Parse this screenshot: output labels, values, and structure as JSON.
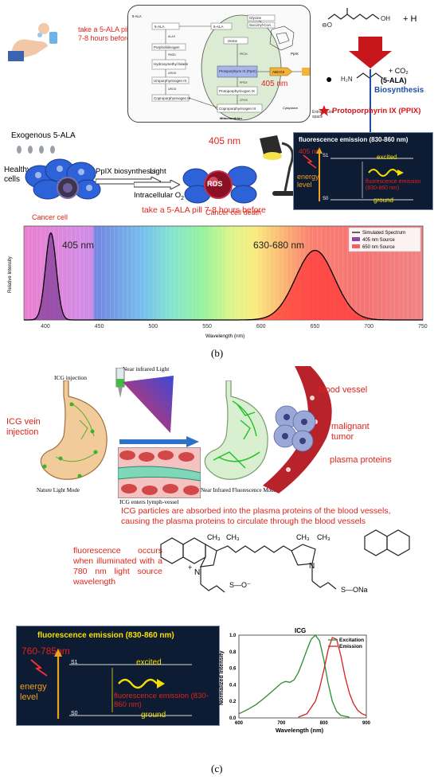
{
  "panel_b": {
    "pill_text": "take a 5-ALA pill 7-8 hours before",
    "pathway": {
      "nodes": [
        "5-ALA",
        "5-ALA",
        "Porphobilinogen",
        "Hydroxymethyl bilane",
        "Uroporphyrinogen III",
        "Coproporphyrinogen III",
        "Protoporphyrin IX (PpIX)",
        "Heme",
        "Glycine",
        "Succinyl-CoA",
        "Protoporphyrinogen IX",
        "Coproporphyrinogen III",
        "ABCG2",
        "ABCG2",
        "PpIX"
      ],
      "enzymes": [
        "ALAS",
        "PBGD",
        "UROS",
        "UROD",
        "CPOX",
        "PPOX",
        "FECH"
      ],
      "regions": [
        "Mitochondrion",
        "Cytoplasm",
        "Extracellular space"
      ],
      "wavelength": "405 nm"
    },
    "reaction": {
      "plus": "+ H",
      "products": "+ CO₂",
      "label": "(5-ALA)",
      "biosynthesis": "Biosynthesis",
      "product_name": "Protoporphyrin IX (PPIX)"
    },
    "middle": {
      "exogenous": "Exogenous 5-ALA",
      "healthy": "Healthy cells",
      "cancer_cell": "Cancer cell",
      "ppix_biosynthesis": "PpIX biosynthesis",
      "light": "Light",
      "intracellular": "Intracellular O",
      "o2_sub": "2",
      "ros": "ROS",
      "cancer_death": "Cancer cell death",
      "lamp_label": "405 nm",
      "pill_again": "take a 5-ALA pill 7-8 hours before"
    },
    "energy": {
      "title": "fluorescence emission (830-860 nm)",
      "excite": "405 nm",
      "s1": "S1",
      "excited": "excited",
      "energy": "energy level",
      "emission": "fluorescence emission (830-860 nm)",
      "s0": "S0",
      "ground": "ground"
    },
    "label": "(b)"
  },
  "chart_data": {
    "type": "line",
    "xlabel": "Wavelength (nm)",
    "ylabel": "Relative Intensity",
    "xlim": [
      380,
      750
    ],
    "ylim": [
      0,
      1.08
    ],
    "x_ticks": [
      400,
      450,
      500,
      550,
      600,
      650,
      700,
      750
    ],
    "annotations": [
      "405 nm",
      "630-680 nm"
    ],
    "legend": [
      "Simulated Spectrum",
      "405 nm Source",
      "650 nm Source"
    ],
    "legend_position": "top-right",
    "peaks": [
      {
        "center": 405,
        "height": 1.0,
        "sigma": 5
      },
      {
        "center": 650,
        "height": 0.8,
        "sigma": 18
      }
    ],
    "colors": {
      "line": "#000000",
      "source405": "#8e44ad",
      "source650": "#e84040"
    }
  },
  "panel_c": {
    "icg_injection": "ICG injection",
    "nir_light": "Near infrared Light",
    "vein": "ICG vein injection",
    "nature_mode": "Nature Light Mode",
    "nir_mode": "Near Infrared Fluorescence Mode",
    "lymph": "ICG enters lymph-vessel",
    "blood_vessel": "blood vessel",
    "malignant": "malignant tumor",
    "plasma": "plasma proteins",
    "caption": "ICG particles are absorbed into the plasma proteins of the blood vessels, causing the plasma proteins to circulate through the blood vessels",
    "fluor_note": "fluorescence occurs when illuminated with a 780 nm light source wavelength",
    "chem": {
      "ch3a": "CH₃",
      "ch3b": "CH₃",
      "ch3c": "CH₃",
      "ch3d": "CH₃",
      "n_plus": "N",
      "plus": "+",
      "n": "N",
      "so3": "S—O⁻",
      "so3na": "S—ONa"
    },
    "energy": {
      "title": "fluorescence emission (830-860 nm)",
      "excite": "760-785nm",
      "s1": "S1",
      "excited": "excited",
      "energy": "energy level",
      "emission": "fluorescence emission (830-860 nm)",
      "s0": "S0",
      "ground": "ground"
    },
    "icg_chart": {
      "title": "ICG",
      "xlabel": "Wavelength (nm)",
      "ylabel": "Normalized Intensity",
      "xlim": [
        600,
        900
      ],
      "ylim": [
        0,
        1.0
      ],
      "x_ticks": [
        600,
        700,
        800,
        900
      ],
      "y_ticks": [
        "0.0",
        "0.2",
        "0.4",
        "0.6",
        "0.8",
        "1.0"
      ],
      "legend": [
        "Excitation",
        "Emission"
      ],
      "excitation": {
        "x": [
          600,
          620,
          640,
          660,
          680,
          700,
          710,
          720,
          730,
          740,
          750,
          760,
          770,
          780,
          790,
          800,
          810,
          820,
          830,
          840,
          860
        ],
        "y": [
          0.05,
          0.1,
          0.16,
          0.24,
          0.33,
          0.42,
          0.44,
          0.43,
          0.46,
          0.55,
          0.68,
          0.82,
          0.95,
          1.0,
          0.93,
          0.7,
          0.42,
          0.2,
          0.08,
          0.03,
          0.01
        ]
      },
      "emission": {
        "x": [
          740,
          760,
          780,
          790,
          800,
          810,
          820,
          830,
          840,
          850,
          860,
          870,
          880,
          890,
          900
        ],
        "y": [
          0.01,
          0.05,
          0.2,
          0.36,
          0.58,
          0.82,
          0.97,
          0.95,
          0.75,
          0.5,
          0.3,
          0.17,
          0.09,
          0.05,
          0.03
        ]
      },
      "colors": {
        "excitation": "#2e8b2e",
        "emission": "#d42020"
      }
    },
    "label": "(c)"
  }
}
